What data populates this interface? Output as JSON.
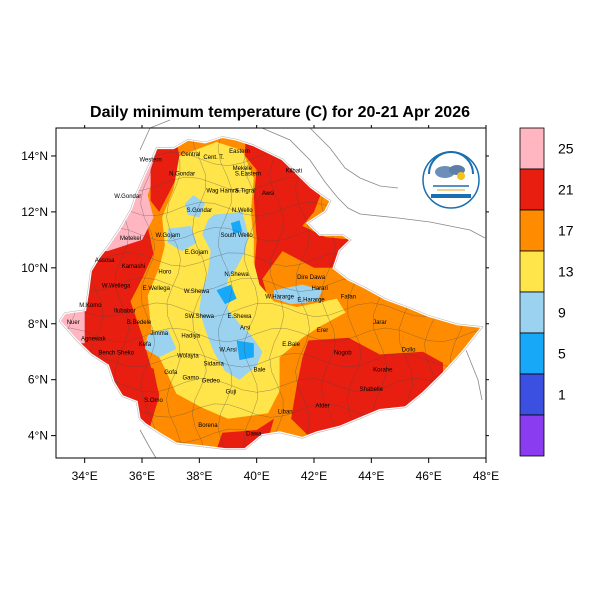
{
  "title": "Daily minimum temperature (C) for 20-21 Apr 2026",
  "map": {
    "lon_range": [
      33,
      48
    ],
    "lat_range": [
      3.2,
      15
    ],
    "x_ticks": [
      {
        "value": 34,
        "label": "34°E"
      },
      {
        "value": 36,
        "label": "36°E"
      },
      {
        "value": 38,
        "label": "38°E"
      },
      {
        "value": 40,
        "label": "40°E"
      },
      {
        "value": 42,
        "label": "42°E"
      },
      {
        "value": 44,
        "label": "44°E"
      },
      {
        "value": 46,
        "label": "46°E"
      },
      {
        "value": 48,
        "label": "48°E"
      }
    ],
    "y_ticks": [
      {
        "value": 4,
        "label": "4°N"
      },
      {
        "value": 6,
        "label": "6°N"
      },
      {
        "value": 8,
        "label": "8°N"
      },
      {
        "value": 10,
        "label": "10°N"
      },
      {
        "value": 12,
        "label": "12°N"
      },
      {
        "value": 14,
        "label": "14°N"
      }
    ]
  },
  "legend": {
    "bins": [
      {
        "color": "#8a3cf0"
      },
      {
        "color": "#3b50e0"
      },
      {
        "color": "#18a8f8"
      },
      {
        "color": "#9ad2f0"
      },
      {
        "color": "#ffe44a"
      },
      {
        "color": "#ff8c00"
      },
      {
        "color": "#e81e10"
      },
      {
        "color": "#ffb6c1"
      }
    ],
    "labels": [
      "1",
      "5",
      "9",
      "13",
      "17",
      "21",
      "25"
    ]
  },
  "regions": [
    {
      "name": "Western",
      "lon": 36.3,
      "lat": 13.8
    },
    {
      "name": "Central",
      "lon": 37.7,
      "lat": 14.0
    },
    {
      "name": "Eastern",
      "lon": 39.4,
      "lat": 14.1
    },
    {
      "name": "Cent. T.",
      "lon": 38.5,
      "lat": 13.9
    },
    {
      "name": "Mekele",
      "lon": 39.5,
      "lat": 13.5
    },
    {
      "name": "Kilbati",
      "lon": 41.3,
      "lat": 13.4
    },
    {
      "name": "N.Gondar",
      "lon": 37.4,
      "lat": 13.3
    },
    {
      "name": "S.Eastern",
      "lon": 39.7,
      "lat": 13.3
    },
    {
      "name": "W.Gondar",
      "lon": 35.5,
      "lat": 12.5
    },
    {
      "name": "Wag Hamra",
      "lon": 38.8,
      "lat": 12.7
    },
    {
      "name": "S.Tigrai",
      "lon": 39.6,
      "lat": 12.7
    },
    {
      "name": "Awsi",
      "lon": 40.4,
      "lat": 12.6
    },
    {
      "name": "S.Gondar",
      "lon": 38.0,
      "lat": 12.0
    },
    {
      "name": "N.Wello",
      "lon": 39.5,
      "lat": 12.0
    },
    {
      "name": "Metekel",
      "lon": 35.6,
      "lat": 11.0
    },
    {
      "name": "W.Gojam",
      "lon": 36.9,
      "lat": 11.1
    },
    {
      "name": "South Wello",
      "lon": 39.3,
      "lat": 11.1
    },
    {
      "name": "E.Gojam",
      "lon": 37.9,
      "lat": 10.5
    },
    {
      "name": "Assosa",
      "lon": 34.7,
      "lat": 10.2
    },
    {
      "name": "Kamashi",
      "lon": 35.7,
      "lat": 10.0
    },
    {
      "name": "Horo",
      "lon": 36.8,
      "lat": 9.8
    },
    {
      "name": "N.Shewa",
      "lon": 39.3,
      "lat": 9.7
    },
    {
      "name": "W.Wellega",
      "lon": 35.1,
      "lat": 9.3
    },
    {
      "name": "E.Wellega",
      "lon": 36.5,
      "lat": 9.2
    },
    {
      "name": "W.Shewa",
      "lon": 37.9,
      "lat": 9.1
    },
    {
      "name": "Dire Dawa",
      "lon": 41.9,
      "lat": 9.6
    },
    {
      "name": "Harari",
      "lon": 42.2,
      "lat": 9.2
    },
    {
      "name": "W.Hararge",
      "lon": 40.8,
      "lat": 8.9
    },
    {
      "name": "E.Hararge",
      "lon": 41.9,
      "lat": 8.8
    },
    {
      "name": "Fafan",
      "lon": 43.2,
      "lat": 8.9
    },
    {
      "name": "M.Komo",
      "lon": 34.2,
      "lat": 8.6
    },
    {
      "name": "Ilubabor",
      "lon": 35.4,
      "lat": 8.4
    },
    {
      "name": "B.Bedele",
      "lon": 35.9,
      "lat": 8.0
    },
    {
      "name": "Jimma",
      "lon": 36.6,
      "lat": 7.6
    },
    {
      "name": "SW.Shewa",
      "lon": 38.0,
      "lat": 8.2
    },
    {
      "name": "E.Shewa",
      "lon": 39.4,
      "lat": 8.2
    },
    {
      "name": "Erer",
      "lon": 42.3,
      "lat": 7.7
    },
    {
      "name": "Jarar",
      "lon": 44.3,
      "lat": 8.0
    },
    {
      "name": "Nuer",
      "lon": 33.6,
      "lat": 8.0
    },
    {
      "name": "Agnewak",
      "lon": 34.3,
      "lat": 7.4
    },
    {
      "name": "Kefa",
      "lon": 36.1,
      "lat": 7.2
    },
    {
      "name": "Hadiya",
      "lon": 37.7,
      "lat": 7.5
    },
    {
      "name": "W.Arsi",
      "lon": 39.0,
      "lat": 7.0
    },
    {
      "name": "Arsi",
      "lon": 39.6,
      "lat": 7.8
    },
    {
      "name": "E.Bale",
      "lon": 41.2,
      "lat": 7.2
    },
    {
      "name": "Nogob",
      "lon": 43.0,
      "lat": 6.9
    },
    {
      "name": "Dollo",
      "lon": 45.3,
      "lat": 7.0
    },
    {
      "name": "Bench Sheko",
      "lon": 35.1,
      "lat": 6.9
    },
    {
      "name": "Wolayta",
      "lon": 37.6,
      "lat": 6.8
    },
    {
      "name": "Sidama",
      "lon": 38.5,
      "lat": 6.5
    },
    {
      "name": "Bale",
      "lon": 40.1,
      "lat": 6.3
    },
    {
      "name": "Korahe",
      "lon": 44.4,
      "lat": 6.3
    },
    {
      "name": "Shabelle",
      "lon": 44.0,
      "lat": 5.6
    },
    {
      "name": "Gofa",
      "lon": 37.0,
      "lat": 6.2
    },
    {
      "name": "Gamo",
      "lon": 37.7,
      "lat": 6.0
    },
    {
      "name": "Gedeo",
      "lon": 38.4,
      "lat": 5.9
    },
    {
      "name": "S.Omo",
      "lon": 36.4,
      "lat": 5.2
    },
    {
      "name": "Guji",
      "lon": 39.1,
      "lat": 5.5
    },
    {
      "name": "Afder",
      "lon": 42.3,
      "lat": 5.0
    },
    {
      "name": "Liban",
      "lon": 41.0,
      "lat": 4.8
    },
    {
      "name": "Borena",
      "lon": 38.3,
      "lat": 4.3
    },
    {
      "name": "Dawa",
      "lon": 39.9,
      "lat": 4.0
    }
  ]
}
